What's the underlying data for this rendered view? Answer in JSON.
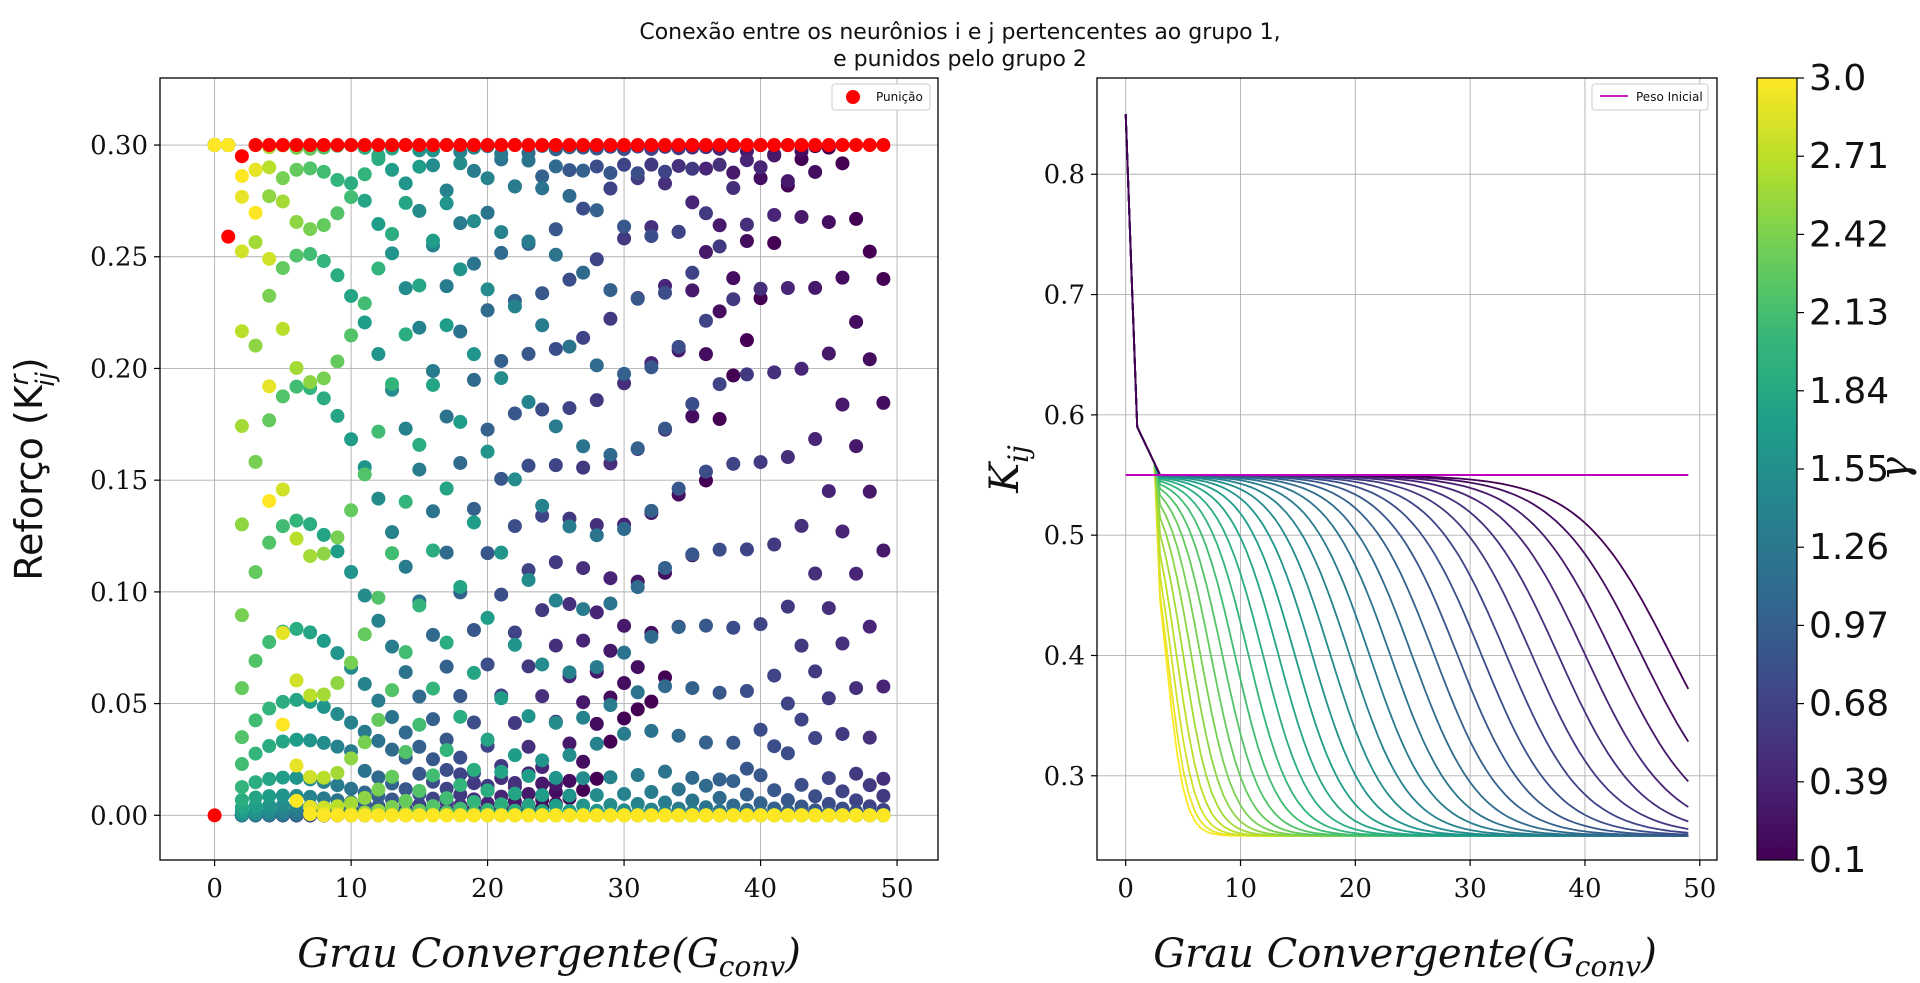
{
  "figure": {
    "title_line1": "Conexão entre os neurônios i e j pertencentes ao grupo 1,",
    "title_line2": "e punidos pelo grupo 2"
  },
  "colors": {
    "punish": "#ff0000",
    "initial_weight": "#bf00bf",
    "grid": "#b0b0b0",
    "viridis_stops": [
      "#440154",
      "#482878",
      "#3e4989",
      "#31688e",
      "#26828e",
      "#1f9e89",
      "#35b779",
      "#6ece58",
      "#b5de2b",
      "#fde725"
    ]
  },
  "chart_data": [
    {
      "type": "scatter",
      "xlabel": "Grau Convergente(G",
      "xlabel_sub": "conv",
      "xlabel_close": ")",
      "ylabel": "Reforço (K",
      "ylabel_sup": "r",
      "ylabel_sub": "ij",
      "ylabel_close": ")",
      "xlim": [
        -4,
        53
      ],
      "ylim": [
        -0.02,
        0.33
      ],
      "xticks": [
        "0",
        "10",
        "20",
        "30",
        "40",
        "50"
      ],
      "xtick_values": [
        0,
        10,
        20,
        30,
        40,
        50
      ],
      "yticks": [
        "0.00",
        "0.05",
        "0.10",
        "0.15",
        "0.20",
        "0.25",
        "0.30"
      ],
      "ytick_values": [
        0,
        0.05,
        0.1,
        0.15,
        0.2,
        0.25,
        0.3
      ],
      "grid": true,
      "legend": {
        "position": "top-right",
        "entries": [
          "Punição"
        ]
      },
      "punish_points": {
        "name": "Punição",
        "x": [
          0,
          1,
          2,
          3,
          4,
          5,
          6,
          7,
          8,
          9,
          10,
          11,
          12,
          13,
          14,
          15,
          16,
          17,
          18,
          19,
          20,
          21,
          22,
          23,
          24,
          25,
          26,
          27,
          28,
          29,
          30,
          31,
          32,
          33,
          34,
          35,
          36,
          37,
          38,
          39,
          40,
          41,
          42,
          43,
          44,
          45,
          46,
          47,
          48,
          49
        ],
        "y": [
          0.0,
          0.259,
          0.295,
          0.3,
          0.3,
          0.3,
          0.3,
          0.3,
          0.3,
          0.3,
          0.3,
          0.3,
          0.3,
          0.3,
          0.3,
          0.3,
          0.3,
          0.3,
          0.3,
          0.3,
          0.3,
          0.3,
          0.3,
          0.3,
          0.3,
          0.3,
          0.3,
          0.3,
          0.3,
          0.3,
          0.3,
          0.3,
          0.3,
          0.3,
          0.3,
          0.3,
          0.3,
          0.3,
          0.3,
          0.3,
          0.3,
          0.3,
          0.3,
          0.3,
          0.3,
          0.3,
          0.3,
          0.3,
          0.3,
          0.3
        ]
      },
      "gamma_range": [
        0.1,
        3.0
      ],
      "x_range": [
        0,
        49
      ]
    },
    {
      "type": "line",
      "ylabel": "K",
      "ylabel_sub": "ij",
      "xlabel": "Grau Convergente(G",
      "xlabel_sub": "conv",
      "xlabel_close": ")",
      "xlim": [
        -2.5,
        51.5
      ],
      "ylim": [
        0.23,
        0.88
      ],
      "xticks": [
        "0",
        "10",
        "20",
        "30",
        "40",
        "50"
      ],
      "xtick_values": [
        0,
        10,
        20,
        30,
        40,
        50
      ],
      "yticks": [
        "0.3",
        "0.4",
        "0.5",
        "0.6",
        "0.7",
        "0.8"
      ],
      "ytick_values": [
        0.3,
        0.4,
        0.5,
        0.6,
        0.7,
        0.8
      ],
      "grid": true,
      "legend": {
        "position": "top-right",
        "entries": [
          "Peso Inicial"
        ]
      },
      "initial_weight": {
        "name": "Peso Inicial",
        "x": [
          0,
          49
        ],
        "y": [
          0.55,
          0.55
        ]
      },
      "gamma_range": [
        0.1,
        3.0
      ],
      "x_range": [
        0,
        49
      ],
      "asymptote": 0.25
    }
  ],
  "colorbar": {
    "label": "γ",
    "ticks": [
      "0.1",
      "0.39",
      "0.68",
      "0.97",
      "1.26",
      "1.55",
      "1.84",
      "2.13",
      "2.42",
      "2.71",
      "3.0"
    ],
    "tick_values": [
      0.1,
      0.39,
      0.68,
      0.97,
      1.26,
      1.55,
      1.84,
      2.13,
      2.42,
      2.71,
      3.0
    ],
    "range": [
      0.1,
      3.0
    ]
  }
}
